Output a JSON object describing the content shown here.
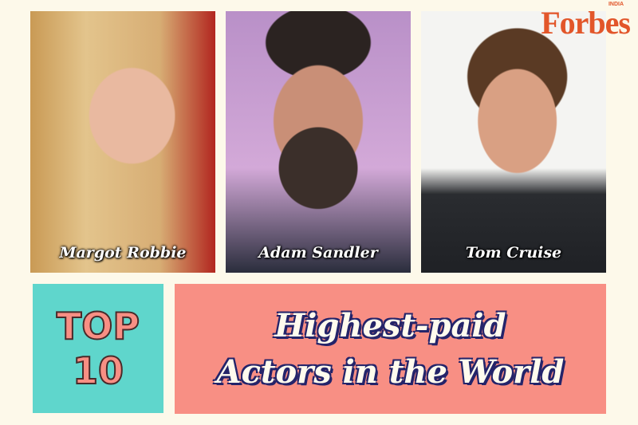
{
  "actors": [
    {
      "name": "Margot Robbie"
    },
    {
      "name": "Adam Sandler"
    },
    {
      "name": "Tom Cruise"
    }
  ],
  "logo": {
    "text": "Forbes",
    "edition": "INDIA",
    "color": "#e2562a"
  },
  "badge": {
    "line1": "TOP",
    "line2": "10",
    "bg": "#5fd6cc"
  },
  "headline": {
    "line1": "Highest-paid",
    "line2": "Actors in the World",
    "bg": "#f88f84"
  }
}
